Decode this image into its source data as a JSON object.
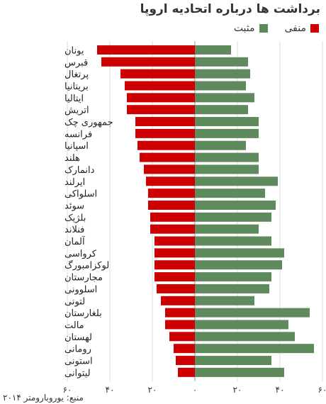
{
  "chart_data": {
    "type": "bar",
    "title": "برداشت ها درباره اتحادیه اروپا",
    "source": "منبع: یوروبارومتر ۲۰۱۴",
    "legend_placement": "top-right",
    "xlim": [
      -60,
      60
    ],
    "xticks": [
      60,
      40,
      20,
      0,
      20,
      40,
      60
    ],
    "grid": true,
    "categories": [
      "یونان",
      "قبرس",
      "پرتغال",
      "بریتانیا",
      "ایتالیا",
      "اتریش",
      "جمهوری چک",
      "فرانسه",
      "اسپانیا",
      "هلند",
      "دانمارک",
      "ایرلند",
      "اسلواکی",
      "سوئد",
      "بلژیک",
      "فنلاند",
      "آلمان",
      "کرواسی",
      "لوکزامبورگ",
      "مجارستان",
      "اسلوونی",
      "لتونی",
      "بلغارستان",
      "مالت",
      "لهستان",
      "رومانی",
      "استونی",
      "لیتوانی"
    ],
    "series": [
      {
        "name": "منفی",
        "color": "#cc0000",
        "values": [
          -46,
          -44,
          -35,
          -33,
          -32,
          -32,
          -28,
          -28,
          -27,
          -26,
          -24,
          -23,
          -22,
          -22,
          -21,
          -21,
          -19,
          -19,
          -19,
          -19,
          -18,
          -16,
          -14,
          -14,
          -12,
          -10,
          -9,
          -8
        ]
      },
      {
        "name": "مثبت",
        "color": "#5e8a5e",
        "values": [
          17,
          25,
          26,
          24,
          28,
          25,
          30,
          30,
          24,
          30,
          30,
          39,
          33,
          38,
          36,
          30,
          36,
          42,
          41,
          36,
          35,
          28,
          54,
          44,
          47,
          56,
          36,
          42
        ]
      }
    ]
  }
}
